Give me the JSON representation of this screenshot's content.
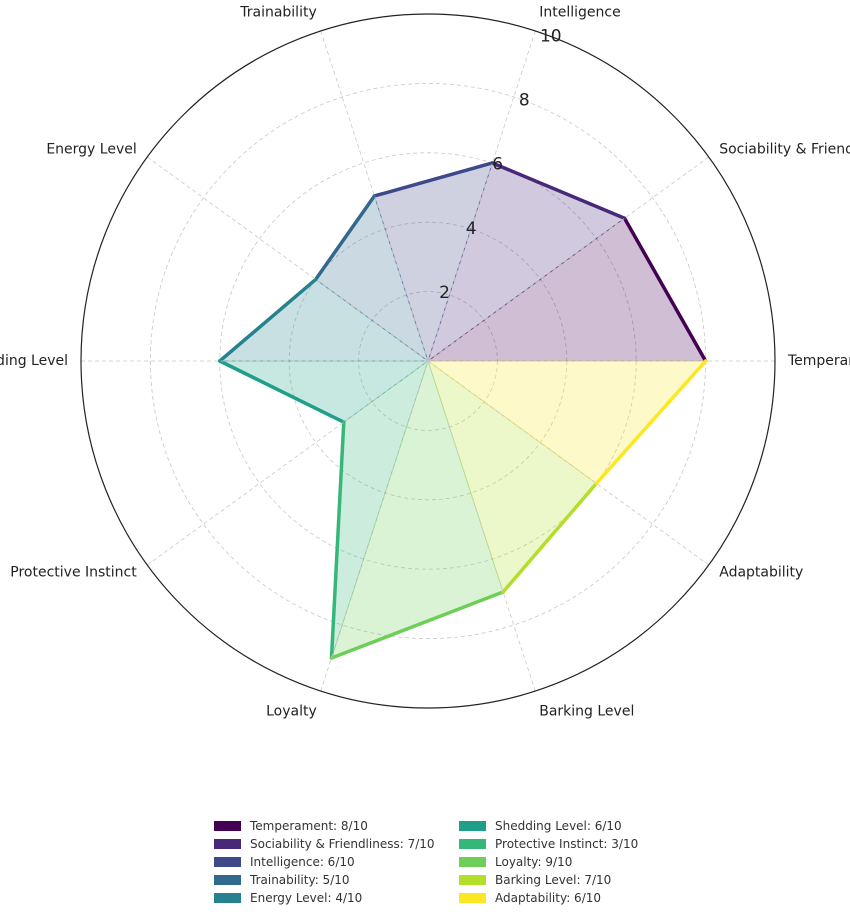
{
  "chart_data": {
    "type": "radar",
    "title": "",
    "categories": [
      "Temperament",
      "Sociability & Friendliness",
      "Intelligence",
      "Trainability",
      "Energy Level",
      "Shedding Level",
      "Protective Instinct",
      "Loyalty",
      "Barking Level",
      "Adaptability"
    ],
    "values": [
      8,
      7,
      6,
      5,
      4,
      6,
      3,
      9,
      7,
      6
    ],
    "colors": [
      "#fde725",
      "#440154",
      "#482878",
      "#3e4989",
      "#31688e",
      "#26828e",
      "#1f9e89",
      "#35b779",
      "#6ece58",
      "#b5de2b",
      "#fde725"
    ],
    "rlim": [
      0,
      10
    ],
    "rticks": [
      "2",
      "4",
      "6",
      "8",
      "10"
    ],
    "rtick_values": [
      2,
      4,
      6,
      8,
      10
    ],
    "grid": true,
    "legend": {
      "position": "bottom",
      "items": [
        {
          "label": "Temperament: 8/10",
          "color": "#440154"
        },
        {
          "label": "Sociability & Friendliness: 7/10",
          "color": "#482878"
        },
        {
          "label": "Intelligence: 6/10",
          "color": "#3e4989"
        },
        {
          "label": "Trainability: 5/10",
          "color": "#31688e"
        },
        {
          "label": "Energy Level: 4/10",
          "color": "#26828e"
        },
        {
          "label": "Shedding Level: 6/10",
          "color": "#1f9e89"
        },
        {
          "label": "Protective Instinct: 3/10",
          "color": "#35b779"
        },
        {
          "label": "Loyalty: 9/10",
          "color": "#6ece58"
        },
        {
          "label": "Barking Level: 7/10",
          "color": "#b5de2b"
        },
        {
          "label": "Adaptability: 6/10",
          "color": "#fde725"
        }
      ]
    }
  }
}
